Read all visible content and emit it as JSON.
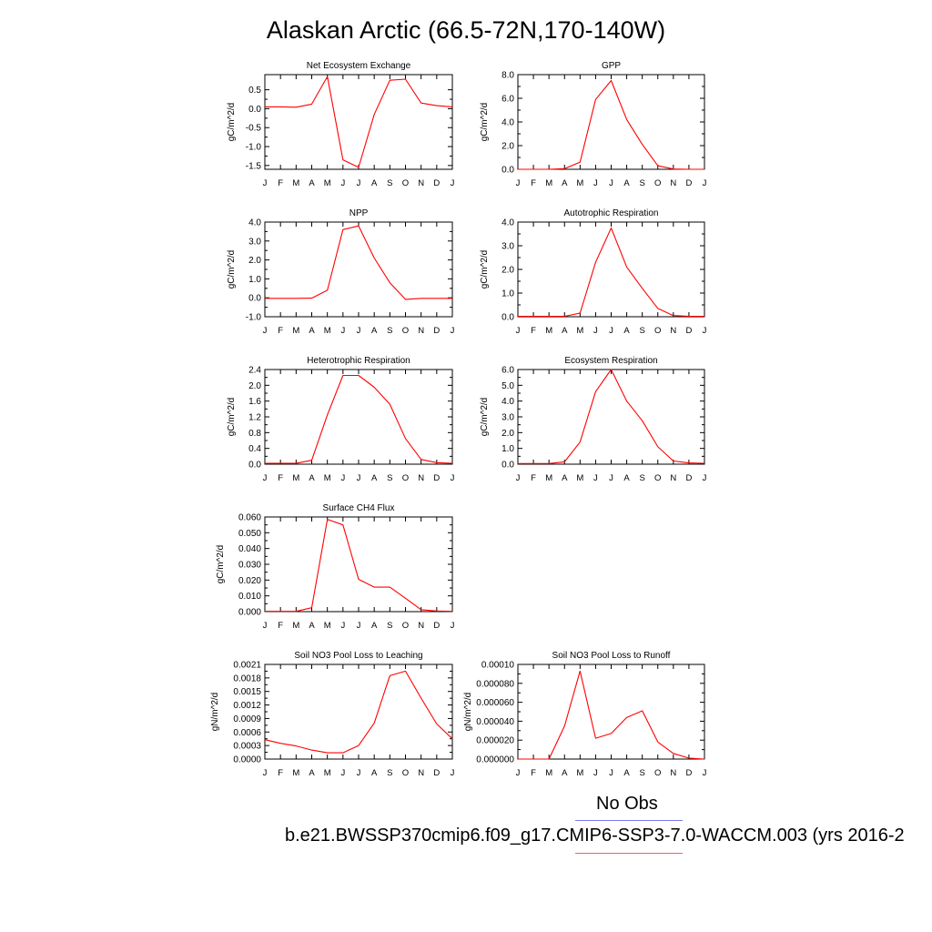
{
  "page": {
    "title": "Alaskan Arctic (66.5-72N,170-140W)",
    "legend_obs_label": "No Obs",
    "legend_run_label": "b.e21.BWSSP370cmip6.f09_g17.CMIP6-SSP3-7.0-WACCM.003 (yrs 2016-2",
    "obs_color": "#7b7bf0",
    "model_color": "#ff0000"
  },
  "chart_data": [
    {
      "type": "line",
      "title": "Net Ecosystem Exchange",
      "ylabel": "gC/m^2/d",
      "xlabel": "",
      "categories": [
        "J",
        "F",
        "M",
        "A",
        "M",
        "J",
        "J",
        "A",
        "S",
        "O",
        "N",
        "D",
        "J"
      ],
      "ylim": [
        -1.6,
        0.9
      ],
      "yticks": [
        -1.5,
        -1.0,
        -0.5,
        0.0,
        0.5
      ],
      "ytick_labels": [
        "-1.5",
        "-1.0",
        "-0.5",
        "0.0",
        "0.5"
      ],
      "values": [
        0.05,
        0.05,
        0.04,
        0.12,
        0.85,
        -1.35,
        -1.55,
        -0.15,
        0.75,
        0.78,
        0.15,
        0.08,
        0.05
      ]
    },
    {
      "type": "line",
      "title": "GPP",
      "ylabel": "gC/m^2/d",
      "xlabel": "",
      "categories": [
        "J",
        "F",
        "M",
        "A",
        "M",
        "J",
        "J",
        "A",
        "S",
        "O",
        "N",
        "D",
        "J"
      ],
      "ylim": [
        0,
        8
      ],
      "yticks": [
        0,
        2,
        4,
        6,
        8
      ],
      "ytick_labels": [
        "0.0",
        "2.0",
        "4.0",
        "6.0",
        "8.0"
      ],
      "values": [
        0,
        0,
        0,
        0.05,
        0.6,
        5.9,
        7.5,
        4.2,
        2.1,
        0.3,
        0.02,
        0,
        0
      ]
    },
    {
      "type": "line",
      "title": "NPP",
      "ylabel": "gC/m^2/d",
      "xlabel": "",
      "categories": [
        "J",
        "F",
        "M",
        "A",
        "M",
        "J",
        "J",
        "A",
        "S",
        "O",
        "N",
        "D",
        "J"
      ],
      "ylim": [
        -1,
        4
      ],
      "yticks": [
        -1,
        0,
        1,
        2,
        3,
        4
      ],
      "ytick_labels": [
        "-1.0",
        "0.0",
        "1.0",
        "2.0",
        "3.0",
        "4.0"
      ],
      "values": [
        -0.03,
        -0.03,
        -0.03,
        -0.02,
        0.4,
        3.6,
        3.8,
        2.1,
        0.8,
        -0.08,
        -0.03,
        -0.03,
        -0.03
      ]
    },
    {
      "type": "line",
      "title": "Autotrophic Respiration",
      "ylabel": "gC/m^2/d",
      "xlabel": "",
      "categories": [
        "J",
        "F",
        "M",
        "A",
        "M",
        "J",
        "J",
        "A",
        "S",
        "O",
        "N",
        "D",
        "J"
      ],
      "ylim": [
        0,
        4
      ],
      "yticks": [
        0,
        1,
        2,
        3,
        4
      ],
      "ytick_labels": [
        "0.0",
        "1.0",
        "2.0",
        "3.0",
        "4.0"
      ],
      "values": [
        0.02,
        0.02,
        0.02,
        0.02,
        0.15,
        2.3,
        3.75,
        2.1,
        1.2,
        0.35,
        0.05,
        0.02,
        0.02
      ]
    },
    {
      "type": "line",
      "title": "Heterotrophic Respiration",
      "ylabel": "gC/m^2/d",
      "xlabel": "",
      "categories": [
        "J",
        "F",
        "M",
        "A",
        "M",
        "J",
        "J",
        "A",
        "S",
        "O",
        "N",
        "D",
        "J"
      ],
      "ylim": [
        0,
        2.4
      ],
      "yticks": [
        0,
        0.4,
        0.8,
        1.2,
        1.6,
        2.0,
        2.4
      ],
      "ytick_labels": [
        "0.0",
        "0.4",
        "0.8",
        "1.2",
        "1.6",
        "2.0",
        "2.4"
      ],
      "values": [
        0.02,
        0.02,
        0.02,
        0.1,
        1.25,
        2.25,
        2.25,
        1.95,
        1.52,
        0.65,
        0.12,
        0.04,
        0.02
      ]
    },
    {
      "type": "line",
      "title": "Ecosystem Respiration",
      "ylabel": "gC/m^2/d",
      "xlabel": "",
      "categories": [
        "J",
        "F",
        "M",
        "A",
        "M",
        "J",
        "J",
        "A",
        "S",
        "O",
        "N",
        "D",
        "J"
      ],
      "ylim": [
        0,
        6
      ],
      "yticks": [
        0,
        1,
        2,
        3,
        4,
        5,
        6
      ],
      "ytick_labels": [
        "0.0",
        "1.0",
        "2.0",
        "3.0",
        "4.0",
        "5.0",
        "6.0"
      ],
      "values": [
        0.04,
        0.04,
        0.04,
        0.15,
        1.4,
        4.6,
        6.0,
        4.0,
        2.75,
        1.1,
        0.2,
        0.08,
        0.05
      ]
    },
    {
      "type": "line",
      "title": "Surface CH4 Flux",
      "ylabel": "gC/m^2/d",
      "xlabel": "",
      "categories": [
        "J",
        "F",
        "M",
        "A",
        "M",
        "J",
        "J",
        "A",
        "S",
        "O",
        "N",
        "D",
        "J"
      ],
      "ylim": [
        0,
        0.06
      ],
      "yticks": [
        0,
        0.01,
        0.02,
        0.03,
        0.04,
        0.05,
        0.06
      ],
      "ytick_labels": [
        "0.000",
        "0.010",
        "0.020",
        "0.030",
        "0.040",
        "0.050",
        "0.060"
      ],
      "values": [
        0.0002,
        0.0002,
        0.0002,
        0.0025,
        0.0585,
        0.055,
        0.0205,
        0.0155,
        0.0155,
        0.0085,
        0.0012,
        0.0004,
        0.0002
      ]
    },
    {
      "type": "line",
      "title": "Soil NO3 Pool Loss to Leaching",
      "ylabel": "gN/m^2/d",
      "xlabel": "",
      "categories": [
        "J",
        "F",
        "M",
        "A",
        "M",
        "J",
        "J",
        "A",
        "S",
        "O",
        "N",
        "D",
        "J"
      ],
      "ylim": [
        0,
        0.0021
      ],
      "yticks": [
        0,
        0.0003,
        0.0006,
        0.0009,
        0.0012,
        0.0015,
        0.0018,
        0.0021
      ],
      "ytick_labels": [
        "0.0000",
        "0.0003",
        "0.0006",
        "0.0009",
        "0.0012",
        "0.0015",
        "0.0018",
        "0.0021"
      ],
      "values": [
        0.00043,
        0.00035,
        0.00029,
        0.0002,
        0.00014,
        0.00014,
        0.0003,
        0.0008,
        0.00185,
        0.00195,
        0.00135,
        0.00078,
        0.00045
      ]
    },
    {
      "type": "line",
      "title": "Soil NO3 Pool Loss to Runoff",
      "ylabel": "gN/m^2/d",
      "xlabel": "",
      "categories": [
        "J",
        "F",
        "M",
        "A",
        "M",
        "J",
        "J",
        "A",
        "S",
        "O",
        "N",
        "D",
        "J"
      ],
      "ylim": [
        0,
        0.0001
      ],
      "yticks": [
        0,
        2e-05,
        4e-05,
        6e-05,
        8e-05,
        0.0001
      ],
      "ytick_labels": [
        "0.000000",
        "0.000020",
        "0.000040",
        "0.000060",
        "0.000080",
        "0.00010"
      ],
      "values": [
        0,
        0,
        0,
        3.5e-05,
        9.3e-05,
        2.2e-05,
        2.7e-05,
        4.4e-05,
        5.1e-05,
        1.8e-05,
        6e-06,
        1e-06,
        0
      ]
    }
  ]
}
